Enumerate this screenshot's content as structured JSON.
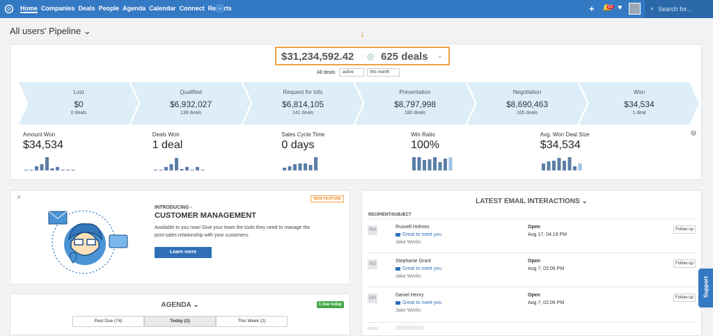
{
  "nav": {
    "items": [
      "Home",
      "Companies",
      "Deals",
      "People",
      "Agenda",
      "Calendar",
      "Connect",
      "Reports"
    ],
    "notifications": "12",
    "search": "Search for..."
  },
  "page_title": "All users' Pipeline",
  "pipeline": {
    "total": "$31,234,592.42",
    "deals": "625 deals",
    "filter_label": "All deals",
    "filters": [
      "active",
      "this month"
    ],
    "stages": [
      {
        "name": "Lost",
        "value": "$0",
        "deals": "0 deals"
      },
      {
        "name": "Qualified",
        "value": "$6,932,027",
        "deals": "139 deals"
      },
      {
        "name": "Request for Info",
        "value": "$6,814,105",
        "deals": "141 deals"
      },
      {
        "name": "Presentation",
        "value": "$8,797,998",
        "deals": "180 deals"
      },
      {
        "name": "Negotiation",
        "value": "$8,690,463",
        "deals": "165 deals"
      },
      {
        "name": "Won",
        "value": "$34,534",
        "deals": "1 deal"
      }
    ],
    "metrics": [
      {
        "label": "Amount Won",
        "value": "$34,534",
        "bars": [
          1,
          1,
          6,
          9,
          19,
          3,
          5,
          1,
          1,
          1
        ]
      },
      {
        "label": "Deals Won",
        "value": "1 deal",
        "bars": [
          1,
          1,
          5,
          9,
          18,
          2,
          5,
          1,
          5,
          1
        ]
      },
      {
        "label": "Sales Cycle Time",
        "value": "0 days",
        "bars": [
          4,
          6,
          9,
          10,
          10,
          8,
          19
        ]
      },
      {
        "label": "Win Ratio",
        "value": "100%",
        "bars": [
          19,
          19,
          15,
          16,
          19,
          12,
          17,
          19
        ]
      },
      {
        "label": "Avg. Won Deal Size",
        "value": "$34,534",
        "bars": [
          10,
          13,
          14,
          18,
          14,
          19,
          6,
          10
        ]
      }
    ]
  },
  "promo": {
    "badge": "NEW FEATURE",
    "kicker": "INTRODUCING -",
    "title": "CUSTOMER MANAGEMENT",
    "text": "Available to you now! Give your team the tools they need to manage the post-sales relationship with your customers.",
    "button": "Learn more"
  },
  "emails": {
    "title": "LATEST EMAIL INTERACTIONS",
    "column": "RECIPIENT/SUBJECT",
    "rows": [
      {
        "initials": "RH",
        "name": "Russell Holmes",
        "subject": "Great to meet you",
        "sender": "Jake Werlin",
        "status": "Open",
        "date": "Aug 17, 04:18 PM",
        "action": "Follow up"
      },
      {
        "initials": "SG",
        "name": "Stephanie Grant",
        "subject": "Great to meet you",
        "sender": "Jake Werlin",
        "status": "Open",
        "date": "Aug 7, 02:06 PM",
        "action": "Follow up"
      },
      {
        "initials": "DH",
        "name": "Daniel Henry",
        "subject": "Great to meet you",
        "sender": "Jake Werlin",
        "status": "Open",
        "date": "Aug 7, 02:06 PM",
        "action": "Follow up"
      }
    ]
  },
  "agenda": {
    "title": "AGENDA",
    "badge": "1 due today",
    "tabs": [
      "Past Due (74)",
      "Today (1)",
      "This Week (2)"
    ]
  },
  "support": "Support"
}
